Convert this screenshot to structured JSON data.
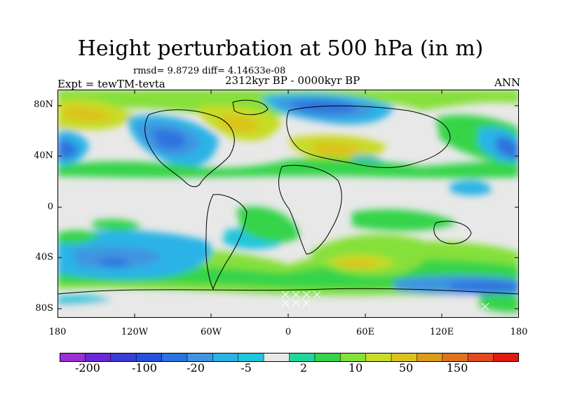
{
  "title": "Height perturbation at 500 hPa (in m)",
  "stats": "rmsd= 9.8729 diff= 4.14633e-08",
  "expt": "Expt = tewTM-tevta",
  "period": "2312kyr BP - 0000kyr BP",
  "season": "ANN",
  "lat_labels": [
    "80N",
    "40N",
    "0",
    "40S",
    "80S"
  ],
  "lon_labels": [
    "180",
    "120W",
    "60W",
    "0",
    "60E",
    "120E",
    "180"
  ],
  "colorbar": {
    "colors": [
      "#9b30d6",
      "#6a28d8",
      "#3c3cd6",
      "#2451dd",
      "#2d73de",
      "#3f95e0",
      "#2ab3e6",
      "#20c6dc",
      "#e8e8e8",
      "#1fd89a",
      "#36d44a",
      "#86e03a",
      "#c8dc28",
      "#dcc21e",
      "#dc9b1b",
      "#de7320",
      "#e24a20",
      "#e01a14"
    ],
    "labels": [
      "-200",
      "-100",
      "-20",
      "-5",
      "2",
      "10",
      "50",
      "150"
    ]
  },
  "colors": {
    "land_outline": "#000000",
    "neutral": "#e8e8e8"
  }
}
